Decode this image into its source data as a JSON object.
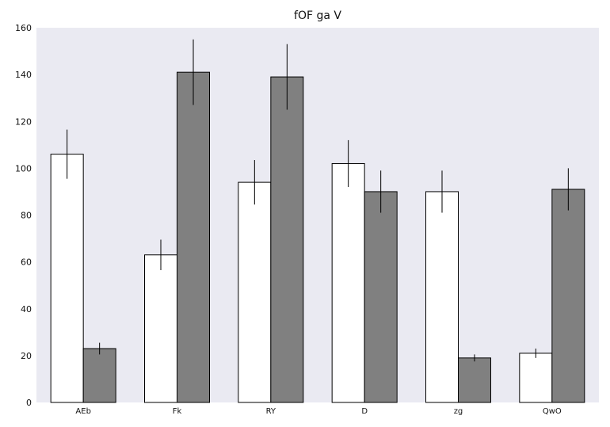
{
  "chart_data": {
    "type": "bar",
    "title": "fOF ga V",
    "xlabel": "",
    "ylabel": "",
    "categories": [
      "AEb",
      "Fk",
      "RY",
      "D",
      "zg",
      "QwO"
    ],
    "series": [
      {
        "color": "#ffffff",
        "values": [
          106,
          63,
          94,
          102,
          90,
          21
        ],
        "errors": [
          10.5,
          6.5,
          9.5,
          10,
          9,
          2
        ]
      },
      {
        "color": "#808080",
        "values": [
          23,
          141,
          139,
          90,
          19,
          91
        ],
        "errors": [
          2.5,
          14,
          14,
          9,
          1.5,
          9
        ]
      }
    ],
    "ylim": [
      0,
      160
    ],
    "yticks": [
      0,
      20,
      40,
      60,
      80,
      100,
      120,
      140,
      160
    ],
    "grid": false,
    "legend": "none",
    "colors": {
      "background": "#eaeaf2",
      "edge": "#000000"
    }
  }
}
